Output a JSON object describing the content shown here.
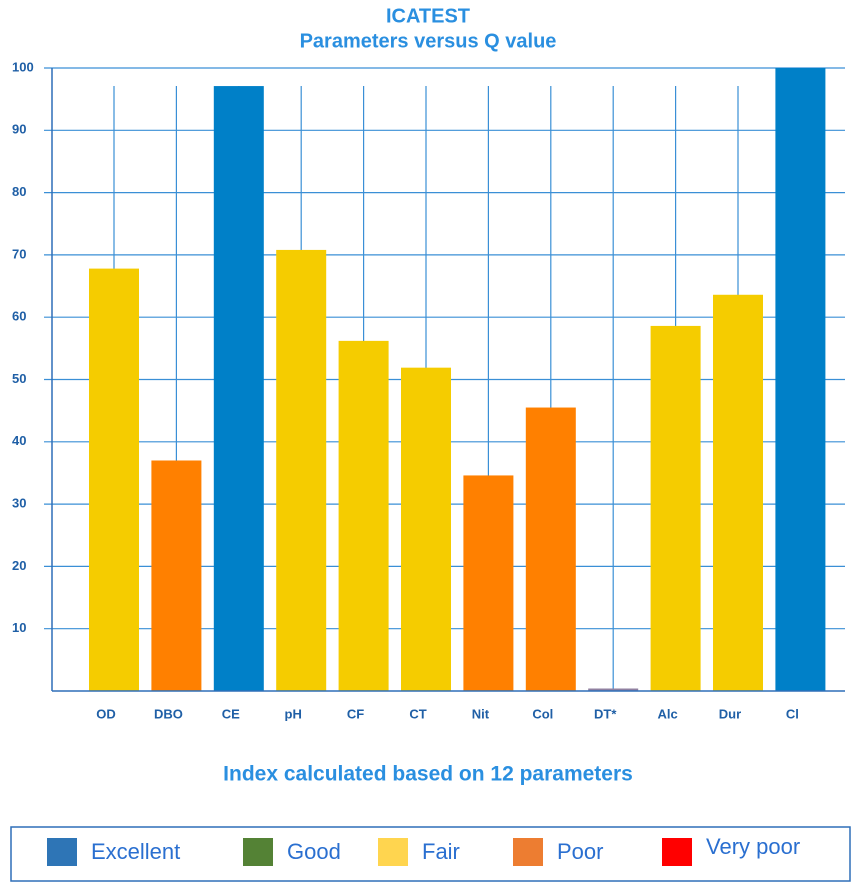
{
  "chart_data": {
    "type": "bar",
    "title": "ICATEST",
    "subtitle": "Parameters versus Q value",
    "categories": [
      "OD",
      "DBO",
      "CE",
      "pH",
      "CF",
      "CT",
      "Nit",
      "Col",
      "DT*",
      "Alc",
      "Dur",
      "Cl"
    ],
    "values": [
      67.8,
      37.0,
      97.1,
      70.8,
      56.2,
      51.9,
      34.6,
      45.5,
      0.4,
      58.6,
      63.6,
      100
    ],
    "colors": [
      "#f5cc00",
      "#ff8000",
      "#0080c8",
      "#f5cc00",
      "#f5cc00",
      "#f5cc00",
      "#ff8000",
      "#ff8000",
      "#9080a0",
      "#f5cc00",
      "#f5cc00",
      "#0080c8"
    ],
    "ylim": [
      0,
      100
    ],
    "yticks": [
      10,
      20,
      30,
      40,
      50,
      60,
      70,
      80,
      90,
      100
    ],
    "grid": true,
    "note": "Index calculated based on 12 parameters",
    "legend": [
      {
        "name": "Excellent",
        "color": "#2e75b6"
      },
      {
        "name": "Good",
        "color": "#548235"
      },
      {
        "name": "Fair",
        "color": "#ffd54f"
      },
      {
        "name": "Poor",
        "color": "#ed7d31"
      },
      {
        "name": "Very poor",
        "color": "#ff0000"
      }
    ]
  }
}
